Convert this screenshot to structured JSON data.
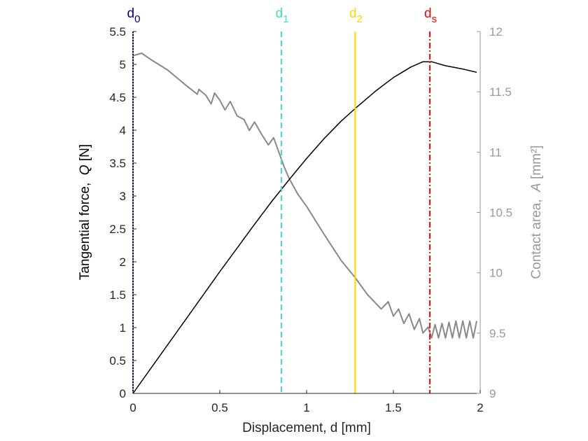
{
  "chart_data": {
    "type": "line",
    "title": "",
    "xlabel": "Displacement, d [mm]",
    "ylabel_left": "Tangential force,  Q [N]",
    "ylabel_left_parts": {
      "prefix": "Tangential force,  ",
      "var": "Q",
      "suffix": " [N]"
    },
    "ylabel_right": "Contact area,  A [mm²]",
    "ylabel_right_parts": {
      "prefix": "Contact area,  ",
      "var": "A",
      "suffix": " [mm²]"
    },
    "xlim": [
      0,
      2
    ],
    "ylim_left": [
      0,
      5.5
    ],
    "ylim_right": [
      9,
      12
    ],
    "xticks": [
      "0",
      "0.5",
      "1",
      "1.5",
      "2"
    ],
    "xtick_values": [
      0,
      0.5,
      1,
      1.5,
      2
    ],
    "yticks_left": [
      "0",
      "0.5",
      "1",
      "1.5",
      "2",
      "2.5",
      "3",
      "3.5",
      "4",
      "4.5",
      "5",
      "5.5"
    ],
    "ytick_values_left": [
      0,
      0.5,
      1,
      1.5,
      2,
      2.5,
      3,
      3.5,
      4,
      4.5,
      5,
      5.5
    ],
    "yticks_right": [
      "9",
      "9.5",
      "10",
      "10.5",
      "11",
      "11.5",
      "12"
    ],
    "ytick_values_right": [
      9,
      9.5,
      10,
      10.5,
      11,
      11.5,
      12
    ],
    "series": [
      {
        "name": "Tangential force Q",
        "axis": "left",
        "color": "#000000",
        "x": [
          0,
          0.1,
          0.2,
          0.3,
          0.4,
          0.5,
          0.6,
          0.7,
          0.8,
          0.9,
          1.0,
          1.1,
          1.2,
          1.28,
          1.4,
          1.5,
          1.6,
          1.67,
          1.72,
          1.8,
          1.9,
          1.98
        ],
        "y": [
          0,
          0.37,
          0.74,
          1.11,
          1.48,
          1.85,
          2.21,
          2.57,
          2.92,
          3.25,
          3.57,
          3.87,
          4.14,
          4.33,
          4.6,
          4.8,
          4.96,
          5.04,
          5.04,
          4.98,
          4.93,
          4.88
        ]
      },
      {
        "name": "Contact area A",
        "axis": "right",
        "color": "#888888",
        "x": [
          0,
          0.05,
          0.1,
          0.2,
          0.3,
          0.37,
          0.38,
          0.42,
          0.45,
          0.47,
          0.5,
          0.53,
          0.56,
          0.6,
          0.64,
          0.67,
          0.7,
          0.74,
          0.78,
          0.81,
          0.84,
          0.87,
          0.9,
          0.95,
          1.0,
          1.1,
          1.2,
          1.28,
          1.35,
          1.43,
          1.47,
          1.5,
          1.53,
          1.56,
          1.59,
          1.62,
          1.65,
          1.67,
          1.7,
          1.72,
          1.74,
          1.76,
          1.78,
          1.8,
          1.82,
          1.84,
          1.86,
          1.88,
          1.9,
          1.92,
          1.94,
          1.96,
          1.98
        ],
        "y": [
          11.8,
          11.82,
          11.77,
          11.68,
          11.56,
          11.48,
          11.52,
          11.47,
          11.4,
          11.49,
          11.43,
          11.35,
          11.42,
          11.3,
          11.27,
          11.18,
          11.25,
          11.15,
          11.06,
          11.12,
          11.0,
          10.88,
          10.78,
          10.65,
          10.55,
          10.32,
          10.1,
          9.96,
          9.82,
          9.7,
          9.76,
          9.64,
          9.7,
          9.58,
          9.66,
          9.53,
          9.62,
          9.5,
          9.55,
          9.46,
          9.57,
          9.46,
          9.58,
          9.46,
          9.59,
          9.46,
          9.6,
          9.46,
          9.6,
          9.46,
          9.6,
          9.46,
          9.6
        ]
      }
    ],
    "markers": [
      {
        "name": "d0",
        "base": "d",
        "sub": "0",
        "x": 0.0,
        "color": "#000080",
        "style": "dotted"
      },
      {
        "name": "d1",
        "base": "d",
        "sub": "1",
        "x": 0.855,
        "color": "#40E0C0",
        "style": "dashed"
      },
      {
        "name": "d2",
        "base": "d",
        "sub": "2",
        "x": 1.28,
        "color": "#FFD700",
        "style": "solid"
      },
      {
        "name": "ds",
        "base": "d",
        "sub": "s",
        "x": 1.71,
        "color": "#FF0000",
        "style": "dashdot"
      }
    ],
    "colors": {
      "left_axis": "#262626",
      "right_axis": "#999999"
    },
    "grid": false,
    "legend": "none"
  }
}
